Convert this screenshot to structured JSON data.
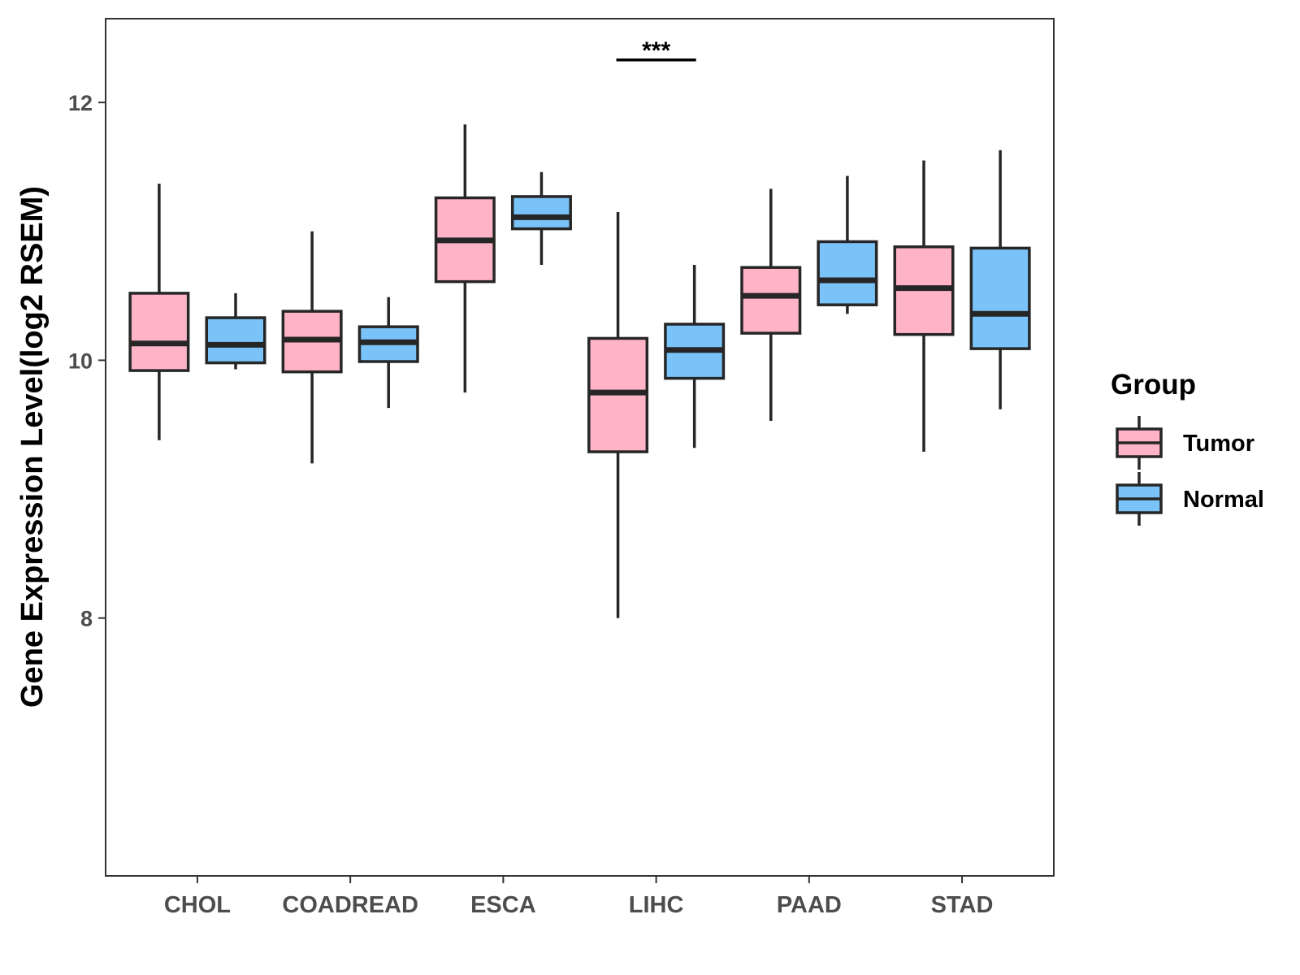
{
  "chart_data": {
    "type": "boxplot",
    "ylabel": "Gene Expression Level(log2 RSEM)",
    "xlabel": "",
    "ylim": [
      6.0,
      12.65
    ],
    "yticks": [
      8,
      10,
      12
    ],
    "y_tick_labels": [
      "8",
      "10",
      "12"
    ],
    "categories": [
      "CHOL",
      "COADREAD",
      "ESCA",
      "LIHC",
      "PAAD",
      "STAD"
    ],
    "legend": {
      "title": "Group",
      "placement": "right",
      "entries": [
        "Tumor",
        "Normal"
      ]
    },
    "colors": {
      "Tumor": "#FFB3C6",
      "Normal": "#7AC3F9",
      "outline": "#262626"
    },
    "series": [
      {
        "name": "Tumor",
        "boxes": [
          {
            "category": "CHOL",
            "min": 9.38,
            "q1": 9.92,
            "median": 10.13,
            "q3": 10.52,
            "max": 11.37
          },
          {
            "category": "COADREAD",
            "min": 9.2,
            "q1": 9.91,
            "median": 10.16,
            "q3": 10.38,
            "max": 11.0
          },
          {
            "category": "ESCA",
            "min": 9.75,
            "q1": 10.61,
            "median": 10.93,
            "q3": 11.26,
            "max": 11.83
          },
          {
            "category": "LIHC",
            "min": 8.0,
            "q1": 9.29,
            "median": 9.75,
            "q3": 10.17,
            "max": 11.15
          },
          {
            "category": "PAAD",
            "min": 9.53,
            "q1": 10.21,
            "median": 10.5,
            "q3": 10.72,
            "max": 11.33
          },
          {
            "category": "STAD",
            "min": 9.29,
            "q1": 10.2,
            "median": 10.56,
            "q3": 10.88,
            "max": 11.55
          }
        ]
      },
      {
        "name": "Normal",
        "boxes": [
          {
            "category": "CHOL",
            "min": 9.93,
            "q1": 9.98,
            "median": 10.12,
            "q3": 10.33,
            "max": 10.52
          },
          {
            "category": "COADREAD",
            "min": 9.63,
            "q1": 9.99,
            "median": 10.14,
            "q3": 10.26,
            "max": 10.49
          },
          {
            "category": "ESCA",
            "min": 10.74,
            "q1": 11.02,
            "median": 11.11,
            "q3": 11.27,
            "max": 11.46
          },
          {
            "category": "LIHC",
            "min": 9.32,
            "q1": 9.86,
            "median": 10.08,
            "q3": 10.28,
            "max": 10.74
          },
          {
            "category": "PAAD",
            "min": 10.36,
            "q1": 10.43,
            "median": 10.62,
            "q3": 10.92,
            "max": 11.43
          },
          {
            "category": "STAD",
            "min": 9.62,
            "q1": 10.09,
            "median": 10.36,
            "q3": 10.87,
            "max": 11.63
          }
        ]
      }
    ],
    "annotations": [
      {
        "category": "LIHC",
        "text": "***",
        "y": 12.33
      }
    ],
    "grid": false
  }
}
